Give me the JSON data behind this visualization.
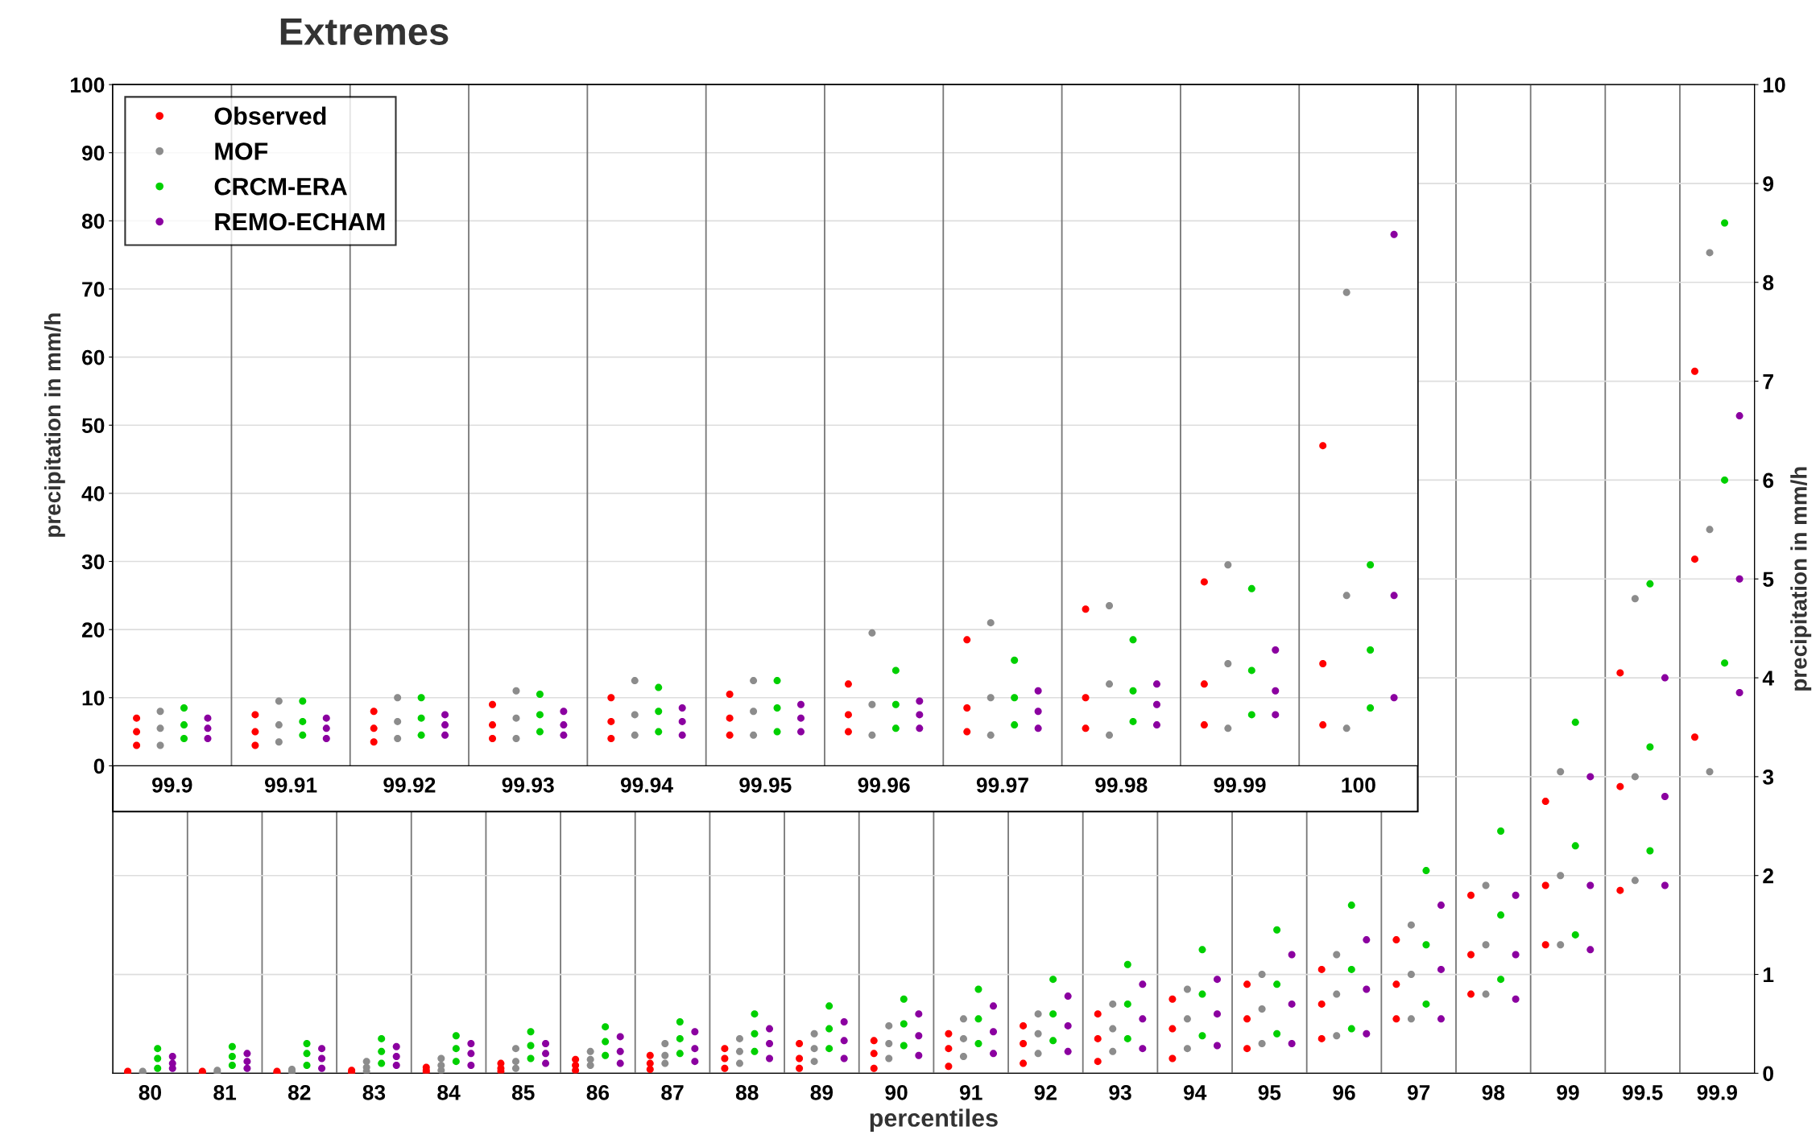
{
  "chart_data": [
    {
      "type": "scatter",
      "title": "Extremes",
      "xlabel": "percentiles",
      "y2label": "precipitation in mm/h",
      "categories": [
        "80",
        "81",
        "82",
        "83",
        "84",
        "85",
        "86",
        "87",
        "88",
        "89",
        "90",
        "91",
        "92",
        "93",
        "94",
        "95",
        "96",
        "97",
        "98",
        "99",
        "99.5",
        "99.9"
      ],
      "y2lim": [
        0,
        10
      ],
      "y2ticks": [
        0,
        1,
        2,
        3,
        4,
        5,
        6,
        7,
        8,
        9,
        10
      ],
      "grid": "y",
      "marker": "circle",
      "legend": false,
      "series": [
        {
          "color": "#ff0000",
          "axis": "y2",
          "x": [
            "80",
            "80",
            "80",
            "81",
            "81",
            "81",
            "82",
            "82",
            "82",
            "83",
            "83",
            "83",
            "84",
            "84",
            "84",
            "85",
            "85",
            "85",
            "86",
            "86",
            "86",
            "87",
            "87",
            "87",
            "88",
            "88",
            "88",
            "89",
            "89",
            "89",
            "90",
            "90",
            "90",
            "91",
            "91",
            "91",
            "92",
            "92",
            "92",
            "93",
            "93",
            "93",
            "94",
            "94",
            "94",
            "95",
            "95",
            "95",
            "96",
            "96",
            "96",
            "97",
            "97",
            "97",
            "98",
            "98",
            "98",
            "99",
            "99",
            "99",
            "99.5",
            "99.5",
            "99.5",
            "99.9",
            "99.9",
            "99.9"
          ],
          "values": [
            0,
            0.01,
            0.02,
            0,
            0.01,
            0.02,
            0,
            0.01,
            0.02,
            0,
            0.01,
            0.03,
            0.01,
            0.03,
            0.06,
            0.02,
            0.05,
            0.1,
            0.03,
            0.08,
            0.14,
            0.04,
            0.1,
            0.18,
            0.05,
            0.15,
            0.25,
            0.05,
            0.15,
            0.3,
            0.05,
            0.2,
            0.33,
            0.07,
            0.25,
            0.4,
            0.1,
            0.3,
            0.48,
            0.12,
            0.35,
            0.6,
            0.15,
            0.45,
            0.75,
            0.25,
            0.55,
            0.9,
            0.35,
            0.7,
            1.05,
            0.55,
            0.9,
            1.35,
            0.8,
            1.2,
            1.8,
            1.3,
            1.9,
            2.75,
            1.85,
            2.9,
            4.05,
            3.4,
            5.2,
            7.1
          ]
        },
        {
          "color": "#8c8c8c",
          "axis": "y2",
          "x": [
            "80",
            "80",
            "80",
            "81",
            "81",
            "81",
            "82",
            "82",
            "82",
            "83",
            "83",
            "83",
            "84",
            "84",
            "84",
            "85",
            "85",
            "85",
            "86",
            "86",
            "86",
            "87",
            "87",
            "87",
            "88",
            "88",
            "88",
            "89",
            "89",
            "89",
            "90",
            "90",
            "90",
            "91",
            "91",
            "91",
            "92",
            "92",
            "92",
            "93",
            "93",
            "93",
            "94",
            "94",
            "94",
            "95",
            "95",
            "95",
            "96",
            "96",
            "96",
            "97",
            "97",
            "97",
            "98",
            "98",
            "98",
            "99",
            "99",
            "99",
            "99.5",
            "99.5",
            "99.5",
            "99.9",
            "99.9",
            "99.9"
          ],
          "values": [
            0,
            0.01,
            0.02,
            0,
            0.01,
            0.03,
            0,
            0.02,
            0.04,
            0.02,
            0.06,
            0.12,
            0.03,
            0.08,
            0.15,
            0.05,
            0.12,
            0.25,
            0.08,
            0.14,
            0.22,
            0.1,
            0.18,
            0.3,
            0.1,
            0.22,
            0.35,
            0.12,
            0.25,
            0.4,
            0.15,
            0.3,
            0.48,
            0.17,
            0.35,
            0.55,
            0.2,
            0.4,
            0.6,
            0.22,
            0.45,
            0.7,
            0.25,
            0.55,
            0.85,
            0.3,
            0.65,
            1.0,
            0.38,
            0.8,
            1.2,
            0.55,
            1.0,
            1.5,
            0.8,
            1.3,
            1.9,
            1.3,
            2.0,
            3.05,
            1.95,
            3.0,
            4.8,
            3.05,
            5.5,
            8.3
          ]
        },
        {
          "color": "#00d000",
          "axis": "y2",
          "x": [
            "80",
            "80",
            "80",
            "81",
            "81",
            "81",
            "82",
            "82",
            "82",
            "83",
            "83",
            "83",
            "84",
            "84",
            "84",
            "85",
            "85",
            "85",
            "86",
            "86",
            "86",
            "87",
            "87",
            "87",
            "88",
            "88",
            "88",
            "89",
            "89",
            "89",
            "90",
            "90",
            "90",
            "91",
            "91",
            "91",
            "92",
            "92",
            "92",
            "93",
            "93",
            "93",
            "94",
            "94",
            "94",
            "95",
            "95",
            "95",
            "96",
            "96",
            "96",
            "97",
            "97",
            "97",
            "98",
            "98",
            "98",
            "99",
            "99",
            "99",
            "99.5",
            "99.5",
            "99.5",
            "99.9",
            "99.9",
            "99.9"
          ],
          "values": [
            0.05,
            0.15,
            0.25,
            0.08,
            0.17,
            0.27,
            0.08,
            0.2,
            0.3,
            0.1,
            0.22,
            0.35,
            0.12,
            0.25,
            0.38,
            0.15,
            0.28,
            0.42,
            0.18,
            0.32,
            0.47,
            0.2,
            0.35,
            0.52,
            0.22,
            0.4,
            0.6,
            0.25,
            0.45,
            0.68,
            0.28,
            0.5,
            0.75,
            0.3,
            0.55,
            0.85,
            0.33,
            0.6,
            0.95,
            0.35,
            0.7,
            1.1,
            0.38,
            0.8,
            1.25,
            0.4,
            0.9,
            1.45,
            0.45,
            1.05,
            1.7,
            0.7,
            1.3,
            2.05,
            0.95,
            1.6,
            2.45,
            1.4,
            2.3,
            3.55,
            2.25,
            3.3,
            4.95,
            4.15,
            6.0,
            8.6
          ]
        },
        {
          "color": "#8b00a0",
          "axis": "y2",
          "x": [
            "80",
            "80",
            "80",
            "81",
            "81",
            "81",
            "82",
            "82",
            "82",
            "83",
            "83",
            "83",
            "84",
            "84",
            "84",
            "85",
            "85",
            "85",
            "86",
            "86",
            "86",
            "87",
            "87",
            "87",
            "88",
            "88",
            "88",
            "89",
            "89",
            "89",
            "90",
            "90",
            "90",
            "91",
            "91",
            "91",
            "92",
            "92",
            "92",
            "93",
            "93",
            "93",
            "94",
            "94",
            "94",
            "95",
            "95",
            "95",
            "96",
            "96",
            "96",
            "97",
            "97",
            "97",
            "98",
            "98",
            "98",
            "99",
            "99",
            "99",
            "99.5",
            "99.5",
            "99.5",
            "99.9",
            "99.9",
            "99.9"
          ],
          "values": [
            0.05,
            0.1,
            0.17,
            0.05,
            0.12,
            0.2,
            0.05,
            0.15,
            0.25,
            0.08,
            0.17,
            0.27,
            0.08,
            0.2,
            0.3,
            0.1,
            0.2,
            0.3,
            0.1,
            0.22,
            0.37,
            0.12,
            0.25,
            0.42,
            0.15,
            0.3,
            0.45,
            0.15,
            0.33,
            0.52,
            0.18,
            0.38,
            0.6,
            0.2,
            0.42,
            0.68,
            0.22,
            0.48,
            0.78,
            0.25,
            0.55,
            0.9,
            0.28,
            0.6,
            0.95,
            0.3,
            0.7,
            1.2,
            0.4,
            0.85,
            1.35,
            0.55,
            1.05,
            1.7,
            0.75,
            1.2,
            1.8,
            1.25,
            1.9,
            3.0,
            1.9,
            2.8,
            4.0,
            3.85,
            5.0,
            6.65
          ]
        }
      ]
    },
    {
      "type": "scatter",
      "ylabel": "precipitation in mm/h",
      "categories": [
        "99.9",
        "99.91",
        "99.92",
        "99.93",
        "99.94",
        "99.95",
        "99.96",
        "99.97",
        "99.98",
        "99.99",
        "100"
      ],
      "ylim": [
        0,
        100
      ],
      "yticks": [
        0,
        10,
        20,
        30,
        40,
        50,
        60,
        70,
        80,
        90,
        100
      ],
      "grid": "y",
      "marker": "circle",
      "legend": "top left",
      "series": [
        {
          "name": "Observed",
          "color": "#ff0000",
          "x": [
            "99.9",
            "99.9",
            "99.9",
            "99.91",
            "99.91",
            "99.91",
            "99.92",
            "99.92",
            "99.92",
            "99.93",
            "99.93",
            "99.93",
            "99.94",
            "99.94",
            "99.94",
            "99.95",
            "99.95",
            "99.95",
            "99.96",
            "99.96",
            "99.96",
            "99.97",
            "99.97",
            "99.97",
            "99.98",
            "99.98",
            "99.98",
            "99.99",
            "99.99",
            "99.99",
            "100",
            "100",
            "100"
          ],
          "values": [
            3,
            5,
            7,
            3,
            5,
            7.5,
            3.5,
            5.5,
            8,
            4,
            6,
            9,
            4,
            6.5,
            10,
            4.5,
            7,
            10.5,
            5,
            7.5,
            12,
            5,
            8.5,
            18.5,
            5.5,
            10,
            23,
            6,
            12,
            27,
            6,
            15,
            47
          ]
        },
        {
          "name": "MOF",
          "color": "#8c8c8c",
          "x": [
            "99.9",
            "99.9",
            "99.9",
            "99.91",
            "99.91",
            "99.91",
            "99.92",
            "99.92",
            "99.92",
            "99.93",
            "99.93",
            "99.93",
            "99.94",
            "99.94",
            "99.94",
            "99.95",
            "99.95",
            "99.95",
            "99.96",
            "99.96",
            "99.96",
            "99.97",
            "99.97",
            "99.97",
            "99.98",
            "99.98",
            "99.98",
            "99.99",
            "99.99",
            "99.99",
            "100",
            "100",
            "100"
          ],
          "values": [
            3,
            5.5,
            8,
            3.5,
            6,
            9.5,
            4,
            6.5,
            10,
            4,
            7,
            11,
            4.5,
            7.5,
            12.5,
            4.5,
            8,
            12.5,
            4.5,
            9,
            19.5,
            4.5,
            10,
            21,
            4.5,
            12,
            23.5,
            5.5,
            15,
            29.5,
            5.5,
            25,
            69.5
          ]
        },
        {
          "name": "CRCM-ERA",
          "color": "#00d000",
          "x": [
            "99.9",
            "99.9",
            "99.9",
            "99.91",
            "99.91",
            "99.91",
            "99.92",
            "99.92",
            "99.92",
            "99.93",
            "99.93",
            "99.93",
            "99.94",
            "99.94",
            "99.94",
            "99.95",
            "99.95",
            "99.95",
            "99.96",
            "99.96",
            "99.96",
            "99.97",
            "99.97",
            "99.97",
            "99.98",
            "99.98",
            "99.98",
            "99.99",
            "99.99",
            "99.99",
            "100",
            "100",
            "100"
          ],
          "values": [
            4,
            6,
            8.5,
            4.5,
            6.5,
            9.5,
            4.5,
            7,
            10,
            5,
            7.5,
            10.5,
            5,
            8,
            11.5,
            5,
            8.5,
            12.5,
            5.5,
            9,
            14,
            6,
            10,
            15.5,
            6.5,
            11,
            18.5,
            7.5,
            14,
            26,
            8.5,
            17,
            29.5
          ]
        },
        {
          "name": "REMO-ECHAM",
          "color": "#8b00a0",
          "x": [
            "99.9",
            "99.9",
            "99.9",
            "99.91",
            "99.91",
            "99.91",
            "99.92",
            "99.92",
            "99.92",
            "99.93",
            "99.93",
            "99.93",
            "99.94",
            "99.94",
            "99.94",
            "99.95",
            "99.95",
            "99.95",
            "99.96",
            "99.96",
            "99.96",
            "99.97",
            "99.97",
            "99.97",
            "99.98",
            "99.98",
            "99.98",
            "99.99",
            "99.99",
            "99.99",
            "100",
            "100",
            "100"
          ],
          "values": [
            4,
            5.5,
            7,
            4,
            5.5,
            7,
            4.5,
            6,
            7.5,
            4.5,
            6,
            8,
            4.5,
            6.5,
            8.5,
            5,
            7,
            9,
            5.5,
            7.5,
            9.5,
            5.5,
            8,
            11,
            6,
            9,
            12,
            7.5,
            11,
            17,
            10,
            25,
            78
          ]
        }
      ]
    }
  ]
}
